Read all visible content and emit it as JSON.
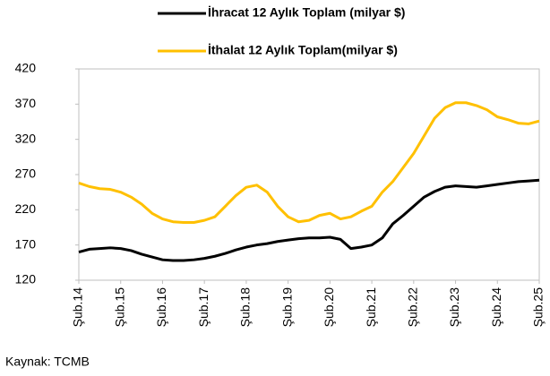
{
  "chart_data": {
    "type": "line",
    "source": "Kaynak: TCMB",
    "categories": [
      "Şub.14",
      null,
      null,
      null,
      "Şub.15",
      null,
      null,
      null,
      "Şub.16",
      null,
      null,
      null,
      "Şub.17",
      null,
      null,
      null,
      "Şub.18",
      null,
      null,
      null,
      "Şub.19",
      null,
      null,
      null,
      "Şub.20",
      null,
      null,
      null,
      "Şub.21",
      null,
      null,
      null,
      "Şub.22",
      null,
      null,
      null,
      "Şub.23",
      null,
      null,
      null,
      "Şub.24",
      null,
      null,
      null,
      "Şub.25"
    ],
    "series": [
      {
        "name": "İhracat 12 Aylık Toplam (milyar $)",
        "color": "#000000",
        "values": [
          160,
          164,
          165,
          166,
          165,
          162,
          157,
          153,
          149,
          148,
          148,
          149,
          151,
          154,
          158,
          163,
          167,
          170,
          172,
          175,
          177,
          179,
          180,
          180,
          181,
          178,
          165,
          167,
          170,
          180,
          200,
          212,
          225,
          238,
          246,
          252,
          254,
          253,
          252,
          254,
          256,
          258,
          260,
          261,
          262
        ]
      },
      {
        "name": "İthalat 12 Aylık Toplam(milyar $)",
        "color": "#ffc000",
        "values": [
          258,
          253,
          250,
          249,
          245,
          238,
          228,
          215,
          207,
          203,
          202,
          202,
          205,
          210,
          225,
          240,
          252,
          255,
          245,
          225,
          210,
          203,
          205,
          212,
          215,
          207,
          210,
          218,
          225,
          245,
          260,
          280,
          300,
          325,
          350,
          365,
          372,
          372,
          368,
          362,
          352,
          348,
          343,
          342,
          346
        ]
      }
    ],
    "ylim": [
      120,
      420
    ],
    "yticks": [
      120,
      170,
      220,
      270,
      320,
      370,
      420
    ],
    "grid": false
  }
}
